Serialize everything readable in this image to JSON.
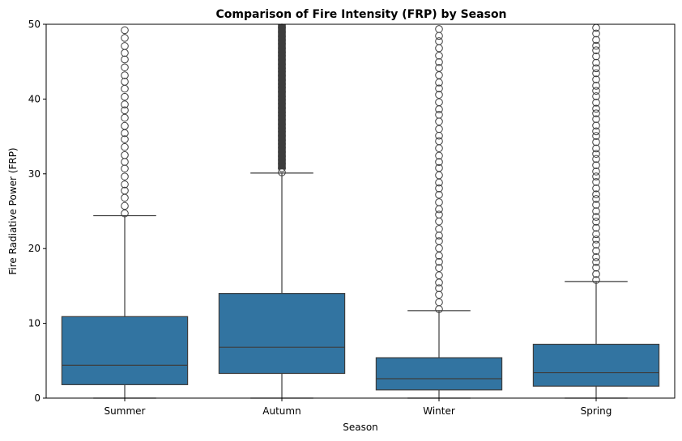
{
  "chart_data": {
    "type": "box",
    "title": "Comparison of Fire Intensity (FRP) by Season",
    "xlabel": "Season",
    "ylabel": "Fire Radiative Power (FRP)",
    "ylim": [
      0,
      50
    ],
    "yticks": [
      "0",
      "10",
      "20",
      "30",
      "40",
      "50"
    ],
    "grid": false,
    "legend": "none",
    "box_color": "#3274a1",
    "line_color": "#3d3d3d",
    "categories": [
      "Summer",
      "Autumn",
      "Winter",
      "Spring"
    ],
    "boxes": [
      {
        "category": "Summer",
        "whisker_low": 0,
        "q1": 1.8,
        "median": 4.4,
        "q3": 10.9,
        "whisker_high": 24.4,
        "outliers_from": 24.7,
        "outliers_to": 50,
        "outlier_density": 0.55
      },
      {
        "category": "Autumn",
        "whisker_low": 0,
        "q1": 3.3,
        "median": 6.8,
        "q3": 14.0,
        "whisker_high": 30.1,
        "outliers_from": 30.2,
        "outliers_to": 50,
        "outlier_density": 1.0
      },
      {
        "category": "Winter",
        "whisker_low": 0,
        "q1": 1.1,
        "median": 2.6,
        "q3": 5.4,
        "whisker_high": 11.7,
        "outliers_from": 11.9,
        "outliers_to": 50,
        "outlier_density": 0.6
      },
      {
        "category": "Spring",
        "whisker_low": 0,
        "q1": 1.6,
        "median": 3.4,
        "q3": 7.2,
        "whisker_high": 15.6,
        "outliers_from": 15.8,
        "outliers_to": 50,
        "outlier_density": 0.7
      }
    ]
  }
}
